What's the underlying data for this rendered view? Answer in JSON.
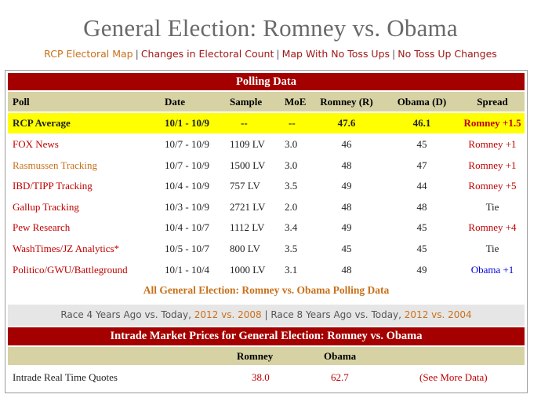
{
  "page_title": "General Election: Romney vs. Obama",
  "top_links": [
    "RCP Electoral Map",
    "Changes in Electoral Count",
    "Map With No Toss Ups",
    "No Toss Up Changes"
  ],
  "polling": {
    "header": "Polling Data",
    "columns": [
      "Poll",
      "Date",
      "Sample",
      "MoE",
      "Romney (R)",
      "Obama (D)",
      "Spread"
    ],
    "average": {
      "poll": "RCP Average",
      "date": "10/1 - 10/9",
      "sample": "--",
      "moe": "--",
      "romney": "47.6",
      "obama": "46.1",
      "spread": "Romney +1.5"
    },
    "rows": [
      {
        "poll": "FOX News",
        "date": "10/7 - 10/9",
        "sample": "1109 LV",
        "moe": "3.0",
        "romney": "46",
        "obama": "45",
        "spread": "Romney +1",
        "spread_color": "#c00000",
        "poll_color": "#c00000"
      },
      {
        "poll": "Rasmussen Tracking",
        "date": "10/7 - 10/9",
        "sample": "1500 LV",
        "moe": "3.0",
        "romney": "48",
        "obama": "47",
        "spread": "Romney +1",
        "spread_color": "#c00000",
        "poll_color": "#c8701a"
      },
      {
        "poll": "IBD/TIPP Tracking",
        "date": "10/4 - 10/9",
        "sample": "757 LV",
        "moe": "3.5",
        "romney": "49",
        "obama": "44",
        "spread": "Romney +5",
        "spread_color": "#c00000",
        "poll_color": "#c00000"
      },
      {
        "poll": "Gallup Tracking",
        "date": "10/3 - 10/9",
        "sample": "2721 LV",
        "moe": "2.0",
        "romney": "48",
        "obama": "48",
        "spread": "Tie",
        "spread_color": "#222222",
        "poll_color": "#c00000"
      },
      {
        "poll": "Pew Research",
        "date": "10/4 - 10/7",
        "sample": "1112 LV",
        "moe": "3.4",
        "romney": "49",
        "obama": "45",
        "spread": "Romney +4",
        "spread_color": "#c00000",
        "poll_color": "#c00000"
      },
      {
        "poll": "WashTimes/JZ Analytics*",
        "date": "10/5 - 10/7",
        "sample": "800 LV",
        "moe": "3.5",
        "romney": "45",
        "obama": "45",
        "spread": "Tie",
        "spread_color": "#222222",
        "poll_color": "#c00000"
      },
      {
        "poll": "Politico/GWU/Battleground",
        "date": "10/1 - 10/4",
        "sample": "1000 LV",
        "moe": "3.1",
        "romney": "48",
        "obama": "49",
        "spread": "Obama +1",
        "spread_color": "#0000dd",
        "poll_color": "#c00000"
      }
    ],
    "all_polls_link": "All General Election: Romney vs. Obama Polling Data"
  },
  "compare": {
    "race4": "Race 4 Years Ago vs. Today",
    "race4_link": "2012 vs. 2008",
    "race8": "Race 8 Years Ago vs. Today",
    "race8_link": "2012 vs. 2004"
  },
  "intrade": {
    "header": "Intrade Market Prices for General Election: Romney vs. Obama",
    "col_romney": "Romney",
    "col_obama": "Obama",
    "label": "Intrade Real Time Quotes",
    "romney": "38.0",
    "obama": "62.7",
    "more": "(See More Data)"
  }
}
